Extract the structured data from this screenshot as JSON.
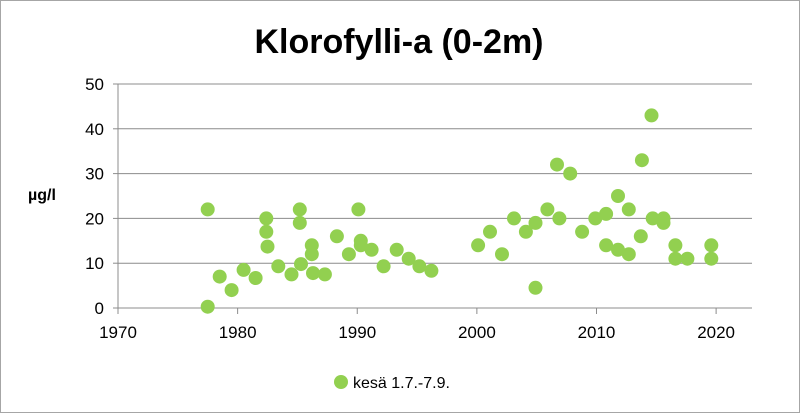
{
  "chart_data": {
    "type": "scatter",
    "title": "Klorofylli-a (0-2m)",
    "ylabel": "µg/l",
    "xlabel": "",
    "xlim": [
      1970,
      2023
    ],
    "ylim": [
      0,
      50
    ],
    "x_ticks": [
      "1970",
      "1980",
      "1990",
      "2000",
      "2010",
      "2020"
    ],
    "y_ticks": [
      "0",
      "10",
      "20",
      "30",
      "40",
      "50"
    ],
    "grid": "horizontal",
    "legend_position": "bottom",
    "series": [
      {
        "name": "kesä 1.7.-7.9.",
        "color": "#92d050",
        "points": [
          [
            1977.5,
            22
          ],
          [
            1977.5,
            0.3
          ],
          [
            1978.5,
            7
          ],
          [
            1979.5,
            4
          ],
          [
            1980.5,
            8.5
          ],
          [
            1981.5,
            6.7
          ],
          [
            1982.4,
            20
          ],
          [
            1982.4,
            17
          ],
          [
            1982.5,
            13.7
          ],
          [
            1983.4,
            9.3
          ],
          [
            1984.5,
            7.5
          ],
          [
            1985.2,
            22
          ],
          [
            1985.2,
            19
          ],
          [
            1985.3,
            9.8
          ],
          [
            1986.2,
            14
          ],
          [
            1986.2,
            12
          ],
          [
            1986.3,
            7.8
          ],
          [
            1987.3,
            7.5
          ],
          [
            1988.3,
            16
          ],
          [
            1989.3,
            12
          ],
          [
            1990.1,
            22
          ],
          [
            1990.3,
            15
          ],
          [
            1990.3,
            14
          ],
          [
            1991.2,
            13
          ],
          [
            1992.2,
            9.3
          ],
          [
            1993.3,
            13
          ],
          [
            1994.3,
            11
          ],
          [
            1995.2,
            9.3
          ],
          [
            1996.2,
            8.3
          ],
          [
            2000.1,
            14
          ],
          [
            2001.1,
            17
          ],
          [
            2002.1,
            12
          ],
          [
            2003.1,
            20
          ],
          [
            2004.1,
            17
          ],
          [
            2004.9,
            19
          ],
          [
            2004.9,
            4.5
          ],
          [
            2005.9,
            22
          ],
          [
            2006.7,
            32
          ],
          [
            2006.9,
            20
          ],
          [
            2007.8,
            30
          ],
          [
            2008.8,
            17
          ],
          [
            2009.9,
            20
          ],
          [
            2010.8,
            21
          ],
          [
            2010.8,
            14
          ],
          [
            2011.8,
            25
          ],
          [
            2011.8,
            13
          ],
          [
            2012.7,
            22
          ],
          [
            2012.7,
            12
          ],
          [
            2013.7,
            16
          ],
          [
            2013.8,
            33
          ],
          [
            2014.6,
            43
          ],
          [
            2014.7,
            20
          ],
          [
            2015.6,
            20
          ],
          [
            2015.6,
            19
          ],
          [
            2016.6,
            14
          ],
          [
            2016.6,
            11
          ],
          [
            2017.6,
            11
          ],
          [
            2019.6,
            14
          ],
          [
            2019.6,
            11
          ]
        ]
      }
    ]
  }
}
